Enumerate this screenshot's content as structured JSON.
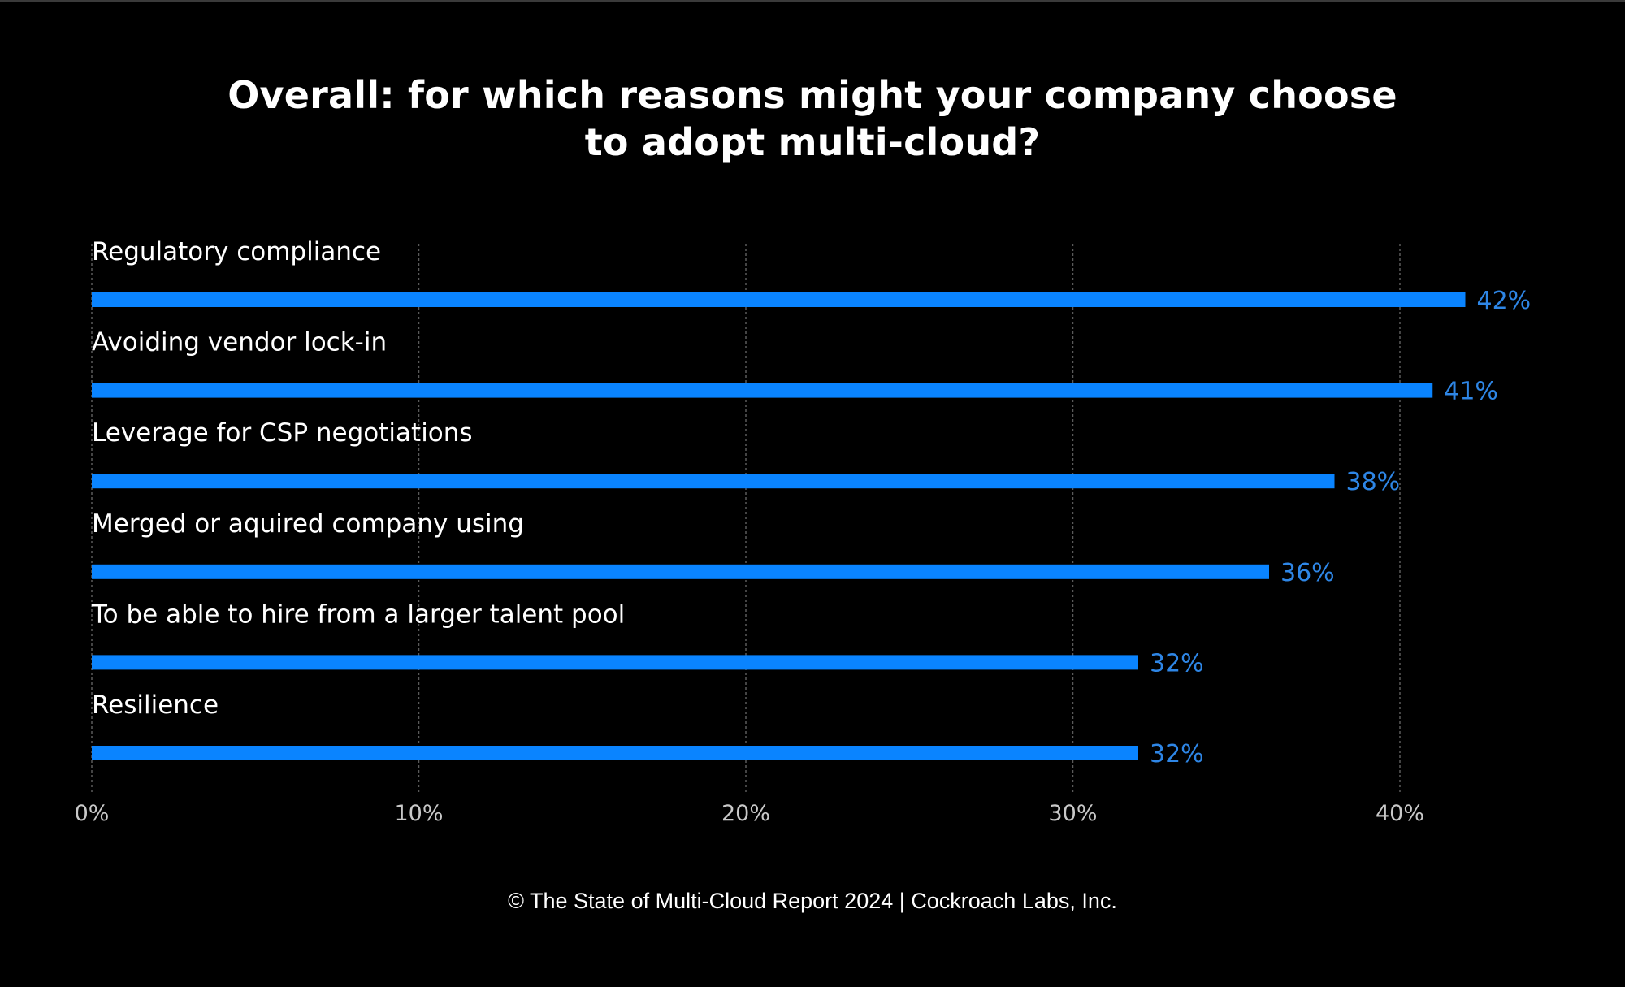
{
  "title_lines": [
    "Overall: for which reasons might your company choose",
    "to adopt multi-cloud?"
  ],
  "footer": "© The State of Multi-Cloud Report 2024 | Cockroach Labs, Inc.",
  "colors": {
    "background": "#000000",
    "bar": "#0a84ff",
    "value_label": "#2e86e6",
    "gridline": "#5a5a5a",
    "tick_label": "#c8c8c8"
  },
  "chart_data": {
    "type": "bar",
    "orientation": "horizontal",
    "title": "Overall: for which reasons might your company choose to adopt multi-cloud?",
    "categories": [
      "Regulatory compliance",
      "Avoiding vendor lock-in",
      "Leverage for CSP negotiations",
      "Merged or aquired company using",
      "To be able to hire from a larger talent pool",
      "Resilience"
    ],
    "values": [
      42,
      41,
      38,
      36,
      32,
      32
    ],
    "value_labels": [
      "42%",
      "41%",
      "38%",
      "36%",
      "32%",
      "32%"
    ],
    "xlabel": "",
    "ylabel": "",
    "xlim": [
      0,
      40
    ],
    "xticks": [
      0,
      10,
      20,
      30,
      40
    ],
    "xtick_labels": [
      "0%",
      "10%",
      "20%",
      "30%",
      "40%"
    ],
    "grid": "vertical dashed",
    "legend": "none",
    "source": "© The State of Multi-Cloud Report 2024 | Cockroach Labs, Inc."
  }
}
